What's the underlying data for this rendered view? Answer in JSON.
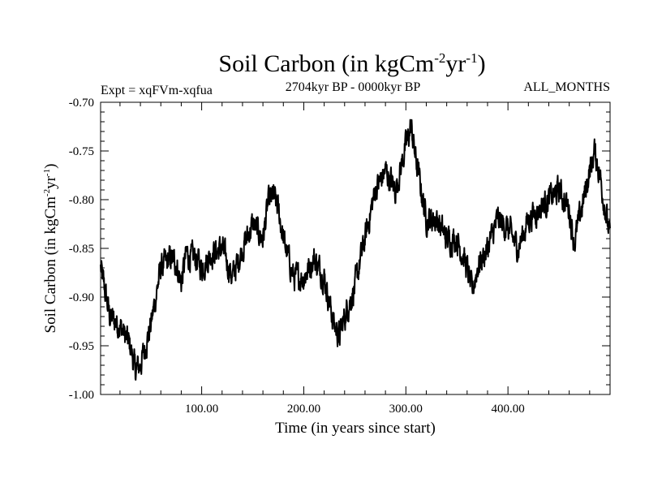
{
  "chart_data": {
    "type": "line",
    "title": {
      "main": "Soil Carbon (in kgCm",
      "sup1": "-2",
      "mid": "yr",
      "sup2": "-1",
      "close": ")"
    },
    "expt_label": "Expt = xqFVm-xqfua",
    "period_label": "2704kyr BP - 0000kyr BP",
    "season_label": "ALL_MONTHS",
    "xlabel": "Time (in years since start)",
    "ylabel": {
      "main": "Soil Carbon (in kgCm",
      "sup1": "-2",
      "mid": "yr",
      "sup2": "-1",
      "close": ")"
    },
    "xlim": [
      1,
      500
    ],
    "ylim": [
      -1.0,
      -0.7
    ],
    "xticks": [
      100,
      200,
      300,
      400
    ],
    "xtick_labels": [
      "100.00",
      "200.00",
      "300.00",
      "400.00"
    ],
    "yticks": [
      -1.0,
      -0.95,
      -0.9,
      -0.85,
      -0.8,
      -0.75,
      -0.7
    ],
    "ytick_labels": [
      "-1.00",
      "-0.95",
      "-0.90",
      "-0.85",
      "-0.80",
      "-0.75",
      "-0.70"
    ],
    "series": [
      {
        "name": "Soil Carbon",
        "x": [
          1,
          10,
          20,
          30,
          35,
          40,
          45,
          50,
          55,
          60,
          65,
          70,
          75,
          80,
          85,
          90,
          95,
          100,
          110,
          120,
          130,
          140,
          150,
          160,
          165,
          170,
          175,
          180,
          190,
          200,
          210,
          220,
          230,
          235,
          240,
          250,
          260,
          270,
          280,
          290,
          300,
          305,
          310,
          315,
          320,
          330,
          340,
          350,
          360,
          365,
          370,
          380,
          390,
          400,
          410,
          420,
          430,
          440,
          450,
          460,
          465,
          470,
          480,
          485,
          490,
          500
        ],
        "y": [
          -0.87,
          -0.92,
          -0.93,
          -0.95,
          -0.975,
          -0.97,
          -0.95,
          -0.93,
          -0.9,
          -0.87,
          -0.865,
          -0.86,
          -0.865,
          -0.885,
          -0.855,
          -0.86,
          -0.86,
          -0.87,
          -0.855,
          -0.85,
          -0.88,
          -0.85,
          -0.825,
          -0.84,
          -0.805,
          -0.795,
          -0.81,
          -0.84,
          -0.88,
          -0.88,
          -0.86,
          -0.88,
          -0.93,
          -0.94,
          -0.92,
          -0.89,
          -0.84,
          -0.79,
          -0.77,
          -0.79,
          -0.745,
          -0.725,
          -0.76,
          -0.79,
          -0.82,
          -0.82,
          -0.84,
          -0.84,
          -0.87,
          -0.895,
          -0.87,
          -0.85,
          -0.82,
          -0.83,
          -0.85,
          -0.82,
          -0.81,
          -0.8,
          -0.79,
          -0.81,
          -0.845,
          -0.82,
          -0.77,
          -0.75,
          -0.775,
          -0.84
        ]
      }
    ]
  }
}
